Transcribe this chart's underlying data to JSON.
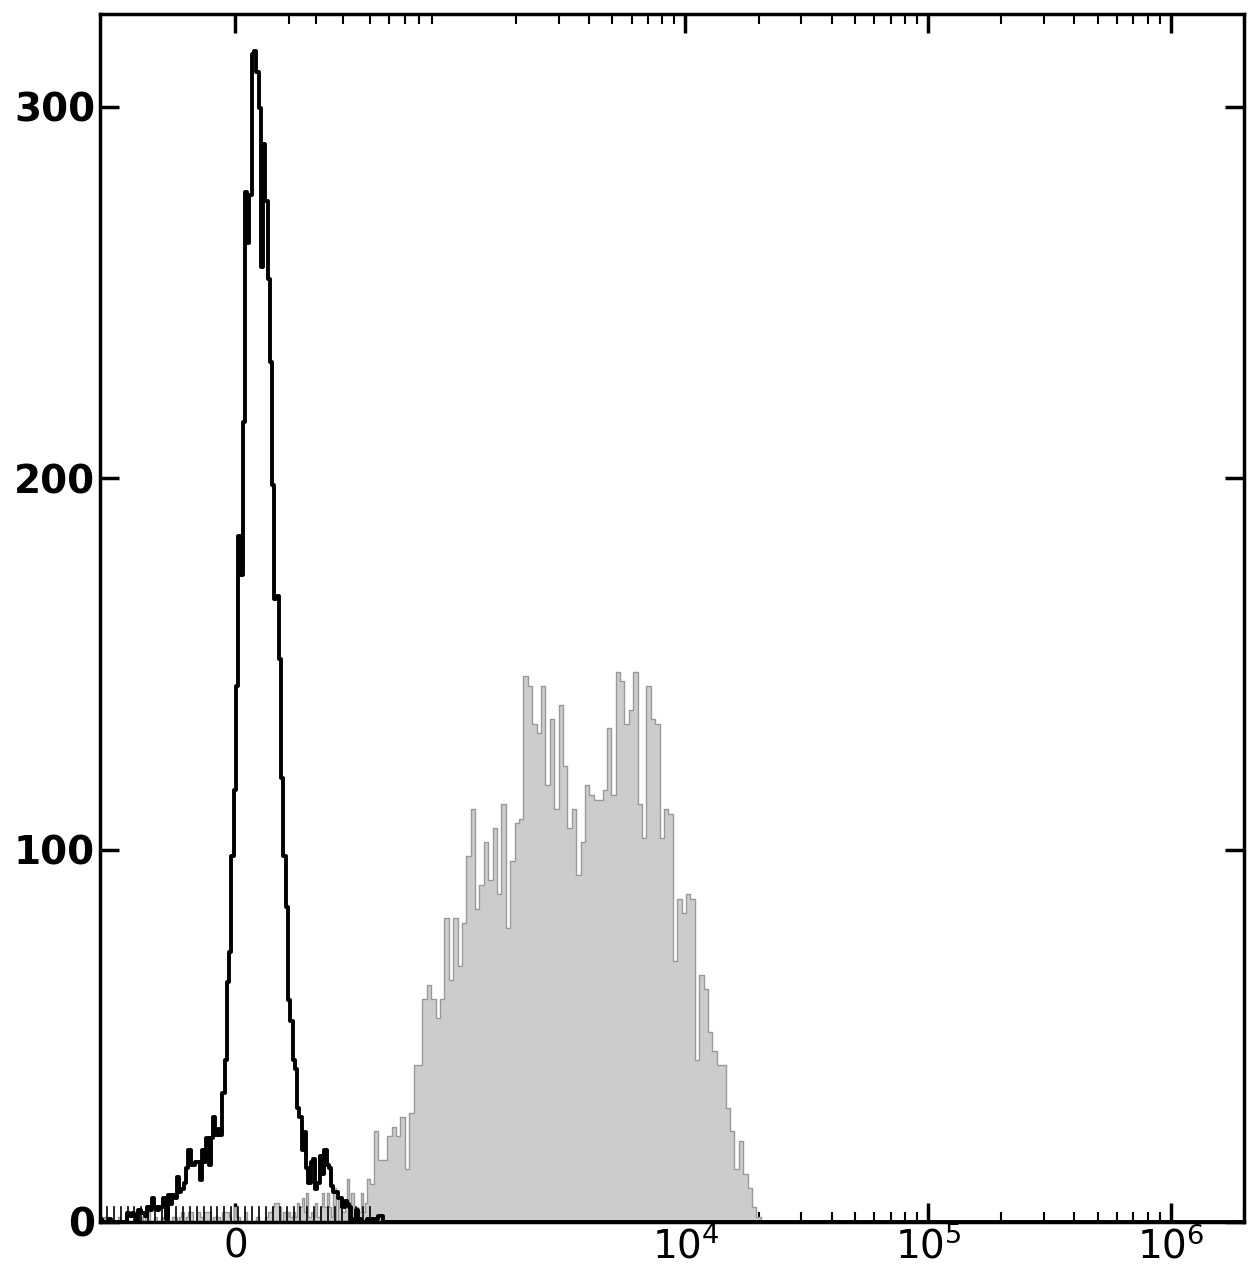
{
  "title": "",
  "ylabel": "",
  "xlabel": "",
  "ylim": [
    0,
    325
  ],
  "yticks": [
    0,
    100,
    200,
    300
  ],
  "background_color": "#ffffff",
  "black_hist_color": "#000000",
  "gray_hist_color": "#cccccc",
  "gray_hist_edge_color": "#999999",
  "black_hist_linewidth": 2.8,
  "gray_hist_linewidth": 1.0,
  "xlim_min": -500,
  "xlim_max": 2000000,
  "symlog_linthresh": 500,
  "black_peak_height": 315,
  "gray_peak_height": 148,
  "xtick_positions": [
    0,
    10000,
    100000,
    1000000
  ],
  "xtick_labels": [
    "0",
    "10^{4}",
    "10^{5}",
    "10^{6}"
  ],
  "tick_fontsize": 28,
  "ytick_fontsize": 28
}
